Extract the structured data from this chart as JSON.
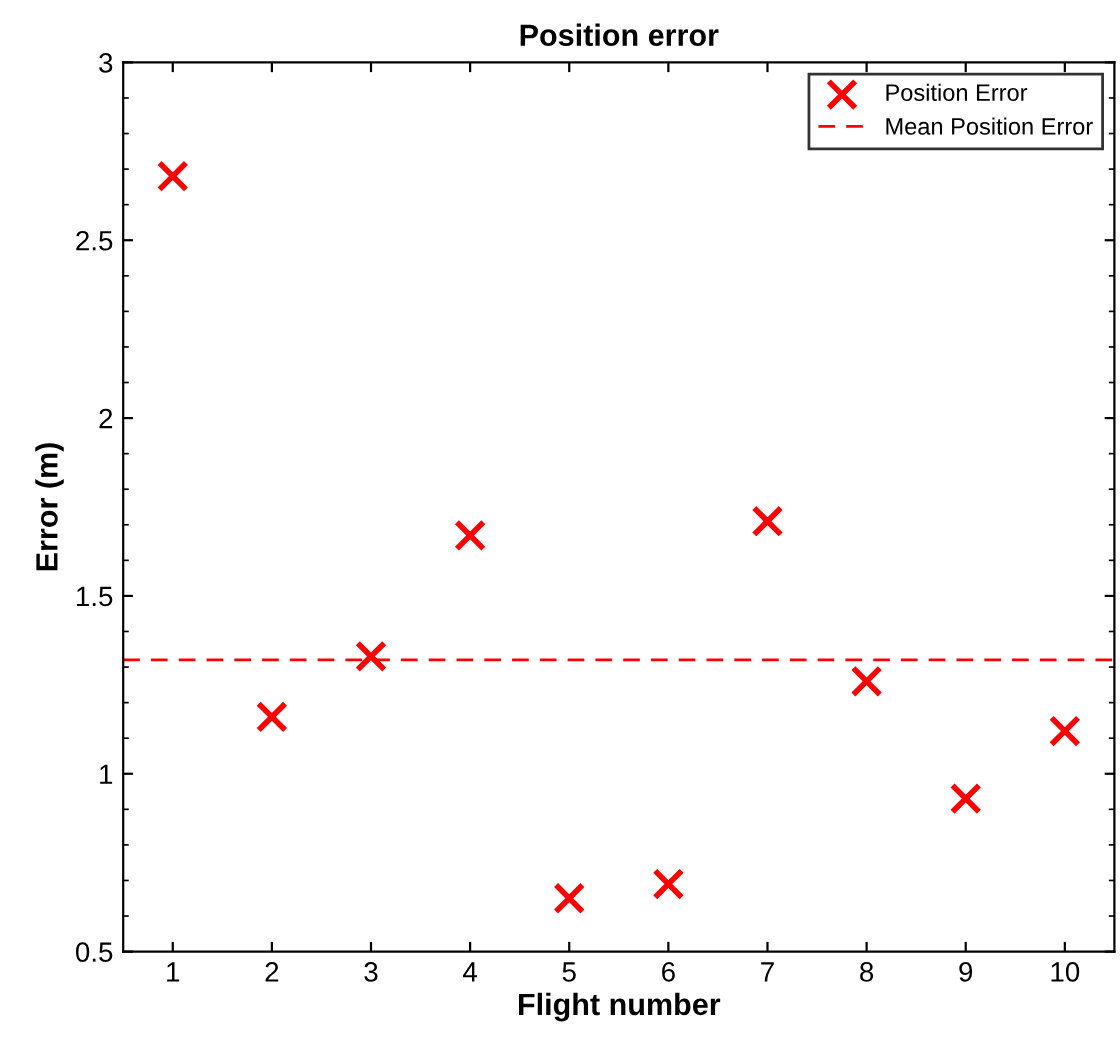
{
  "chart_data": {
    "type": "scatter",
    "title": "Position error",
    "xlabel": "Flight number",
    "ylabel": "Error (m)",
    "x": [
      1,
      2,
      3,
      4,
      5,
      6,
      7,
      8,
      9,
      10
    ],
    "series": [
      {
        "name": "Position Error",
        "color": "#ff0000",
        "values": [
          2.68,
          1.16,
          1.33,
          1.67,
          0.65,
          0.69,
          1.71,
          1.26,
          0.93,
          1.12
        ]
      }
    ],
    "ref_lines": [
      {
        "axis": "y",
        "value": 1.32,
        "label": "Mean Position Error",
        "color": "#ff0000",
        "line_style": "dashed"
      }
    ],
    "xlim": [
      0.5,
      10.5
    ],
    "xticks": [
      1,
      2,
      3,
      4,
      5,
      6,
      7,
      8,
      9,
      10
    ],
    "ylim": [
      0.5,
      3
    ],
    "yticks": [
      0.5,
      1,
      1.5,
      2,
      2.5,
      3
    ],
    "marker": "cross",
    "legend": "top right",
    "grid": false
  }
}
